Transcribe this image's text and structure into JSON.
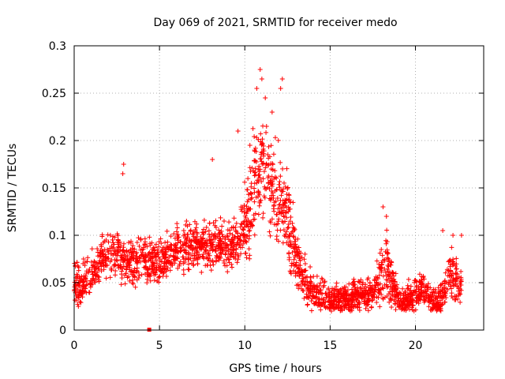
{
  "chart_data": {
    "type": "scatter",
    "title": "Day 069 of 2021, SRMTID for receiver medo",
    "xlabel": "GPS time / hours",
    "ylabel": "SRMTID / TECUs",
    "xlim": [
      0,
      24
    ],
    "ylim": [
      0,
      0.3
    ],
    "x_ticks": [
      0,
      5,
      10,
      15,
      20
    ],
    "y_ticks": [
      0,
      0.05,
      0.1,
      0.15,
      0.2,
      0.25,
      0.3
    ],
    "x_tick_labels": [
      "0",
      "5",
      "10",
      "15",
      "20"
    ],
    "y_tick_labels": [
      "0",
      "0.05",
      "0.1",
      "0.15",
      "0.2",
      "0.25",
      "0.3"
    ],
    "grid": true,
    "marker": "plus",
    "series_color": "#ff0000",
    "extra_marker": {
      "x": 4.4,
      "y": 0.0,
      "shape": "square"
    },
    "series": [
      {
        "name": "SRMTID",
        "trend": [
          [
            0.0,
            0.05
          ],
          [
            0.5,
            0.048
          ],
          [
            1.0,
            0.06
          ],
          [
            1.5,
            0.075
          ],
          [
            2.0,
            0.08
          ],
          [
            2.5,
            0.082
          ],
          [
            3.0,
            0.072
          ],
          [
            3.5,
            0.07
          ],
          [
            4.0,
            0.075
          ],
          [
            4.5,
            0.072
          ],
          [
            5.0,
            0.07
          ],
          [
            5.5,
            0.08
          ],
          [
            6.0,
            0.085
          ],
          [
            6.5,
            0.088
          ],
          [
            7.0,
            0.09
          ],
          [
            7.5,
            0.09
          ],
          [
            8.0,
            0.092
          ],
          [
            8.5,
            0.09
          ],
          [
            9.0,
            0.088
          ],
          [
            9.5,
            0.095
          ],
          [
            10.0,
            0.11
          ],
          [
            10.5,
            0.15
          ],
          [
            11.0,
            0.17
          ],
          [
            11.5,
            0.15
          ],
          [
            12.0,
            0.14
          ],
          [
            12.5,
            0.12
          ],
          [
            13.0,
            0.075
          ],
          [
            13.5,
            0.055
          ],
          [
            14.0,
            0.04
          ],
          [
            14.5,
            0.035
          ],
          [
            15.0,
            0.033
          ],
          [
            15.5,
            0.032
          ],
          [
            16.0,
            0.033
          ],
          [
            16.5,
            0.035
          ],
          [
            17.0,
            0.035
          ],
          [
            17.5,
            0.038
          ],
          [
            18.0,
            0.06
          ],
          [
            18.3,
            0.07
          ],
          [
            18.6,
            0.05
          ],
          [
            19.0,
            0.032
          ],
          [
            19.5,
            0.03
          ],
          [
            20.0,
            0.038
          ],
          [
            20.5,
            0.045
          ],
          [
            21.0,
            0.03
          ],
          [
            21.5,
            0.032
          ],
          [
            22.0,
            0.06
          ],
          [
            22.5,
            0.05
          ],
          [
            22.7,
            0.045
          ]
        ],
        "spread": [
          [
            0.0,
            0.02
          ],
          [
            9.5,
            0.022
          ],
          [
            10.5,
            0.05
          ],
          [
            12.5,
            0.04
          ],
          [
            13.0,
            0.025
          ],
          [
            14.0,
            0.015
          ],
          [
            17.5,
            0.015
          ],
          [
            18.2,
            0.04
          ],
          [
            18.8,
            0.015
          ],
          [
            21.5,
            0.015
          ],
          [
            22.3,
            0.025
          ],
          [
            22.7,
            0.015
          ]
        ],
        "peaks": [
          [
            2.9,
            0.175
          ],
          [
            2.85,
            0.165
          ],
          [
            8.1,
            0.18
          ],
          [
            9.6,
            0.21
          ],
          [
            10.7,
            0.255
          ],
          [
            10.9,
            0.275
          ],
          [
            11.0,
            0.265
          ],
          [
            11.2,
            0.245
          ],
          [
            12.2,
            0.265
          ],
          [
            12.1,
            0.255
          ],
          [
            11.6,
            0.23
          ],
          [
            10.3,
            0.195
          ],
          [
            18.1,
            0.13
          ],
          [
            18.3,
            0.12
          ],
          [
            21.6,
            0.105
          ],
          [
            22.2,
            0.1
          ],
          [
            22.7,
            0.1
          ]
        ],
        "n_points": 2400
      }
    ]
  }
}
